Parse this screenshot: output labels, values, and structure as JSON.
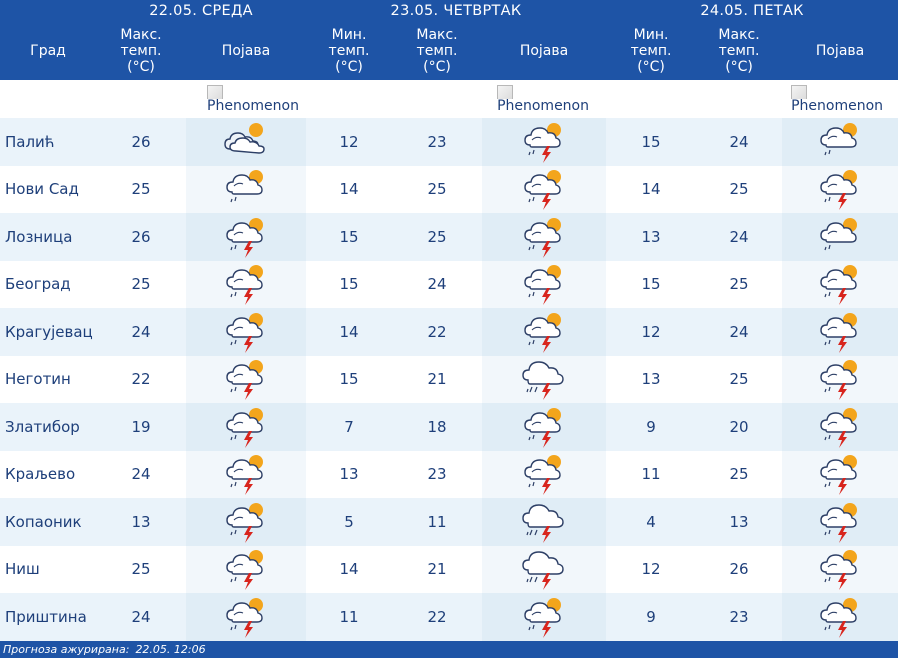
{
  "days": [
    {
      "label": "22.05. СРЕДА"
    },
    {
      "label": "23.05. ЧЕТВРТАК"
    },
    {
      "label": "24.05. ПЕТАК"
    }
  ],
  "headers": {
    "city": "Град",
    "max": [
      "Макс.",
      "темп.",
      "(°C)"
    ],
    "min": [
      "Мин.",
      "темп.",
      "(°C)"
    ],
    "phenomenon": "Појава"
  },
  "phenomenon_alt": "Phenomenon",
  "rows": [
    {
      "city": "Палић",
      "d1_max": "26",
      "d1_icon": "partly-cloudy-icon",
      "d2_min": "12",
      "d2_max": "23",
      "d2_icon": "thunderstorm-icon",
      "d3_min": "15",
      "d3_max": "24",
      "d3_icon": "cloudy-light-rain-icon"
    },
    {
      "city": "Нови Сад",
      "d1_max": "25",
      "d1_icon": "cloudy-light-rain-icon",
      "d2_min": "14",
      "d2_max": "25",
      "d2_icon": "thunderstorm-icon",
      "d3_min": "14",
      "d3_max": "25",
      "d3_icon": "thunderstorm-icon"
    },
    {
      "city": "Лозница",
      "d1_max": "26",
      "d1_icon": "thunderstorm-icon",
      "d2_min": "15",
      "d2_max": "25",
      "d2_icon": "thunderstorm-icon",
      "d3_min": "13",
      "d3_max": "24",
      "d3_icon": "cloudy-light-rain-icon"
    },
    {
      "city": "Београд",
      "d1_max": "25",
      "d1_icon": "thunderstorm-icon",
      "d2_min": "15",
      "d2_max": "24",
      "d2_icon": "thunderstorm-icon",
      "d3_min": "15",
      "d3_max": "25",
      "d3_icon": "thunderstorm-icon"
    },
    {
      "city": "Крагујевац",
      "d1_max": "24",
      "d1_icon": "thunderstorm-icon",
      "d2_min": "14",
      "d2_max": "22",
      "d2_icon": "thunderstorm-icon",
      "d3_min": "12",
      "d3_max": "24",
      "d3_icon": "thunderstorm-icon"
    },
    {
      "city": "Неготин",
      "d1_max": "22",
      "d1_icon": "thunderstorm-icon",
      "d2_min": "15",
      "d2_max": "21",
      "d2_icon": "cloud-rain-thunder-icon",
      "d3_min": "13",
      "d3_max": "25",
      "d3_icon": "thunderstorm-icon"
    },
    {
      "city": "Златибор",
      "d1_max": "19",
      "d1_icon": "thunderstorm-icon",
      "d2_min": "7",
      "d2_max": "18",
      "d2_icon": "thunderstorm-icon",
      "d3_min": "9",
      "d3_max": "20",
      "d3_icon": "thunderstorm-icon"
    },
    {
      "city": "Краљево",
      "d1_max": "24",
      "d1_icon": "thunderstorm-icon",
      "d2_min": "13",
      "d2_max": "23",
      "d2_icon": "thunderstorm-icon",
      "d3_min": "11",
      "d3_max": "25",
      "d3_icon": "thunderstorm-icon"
    },
    {
      "city": "Копаоник",
      "d1_max": "13",
      "d1_icon": "thunderstorm-icon",
      "d2_min": "5",
      "d2_max": "11",
      "d2_icon": "cloud-rain-thunder-icon",
      "d3_min": "4",
      "d3_max": "13",
      "d3_icon": "thunderstorm-icon"
    },
    {
      "city": "Ниш",
      "d1_max": "25",
      "d1_icon": "thunderstorm-icon",
      "d2_min": "14",
      "d2_max": "21",
      "d2_icon": "cloud-rain-thunder-icon",
      "d3_min": "12",
      "d3_max": "26",
      "d3_icon": "thunderstorm-icon"
    },
    {
      "city": "Приштина",
      "d1_max": "24",
      "d1_icon": "thunderstorm-icon",
      "d2_min": "11",
      "d2_max": "22",
      "d2_icon": "thunderstorm-icon",
      "d3_min": "9",
      "d3_max": "23",
      "d3_icon": "thunderstorm-icon"
    }
  ],
  "footer": {
    "label": "Прогноза ажурирана:",
    "value": "22.05. 12:06"
  },
  "colors": {
    "header_bg": "#1e54a6",
    "text": "#1e3f7a",
    "row_alt": "#eaf3fa",
    "sun": "#f3a51c",
    "lightning": "#d8251d"
  }
}
